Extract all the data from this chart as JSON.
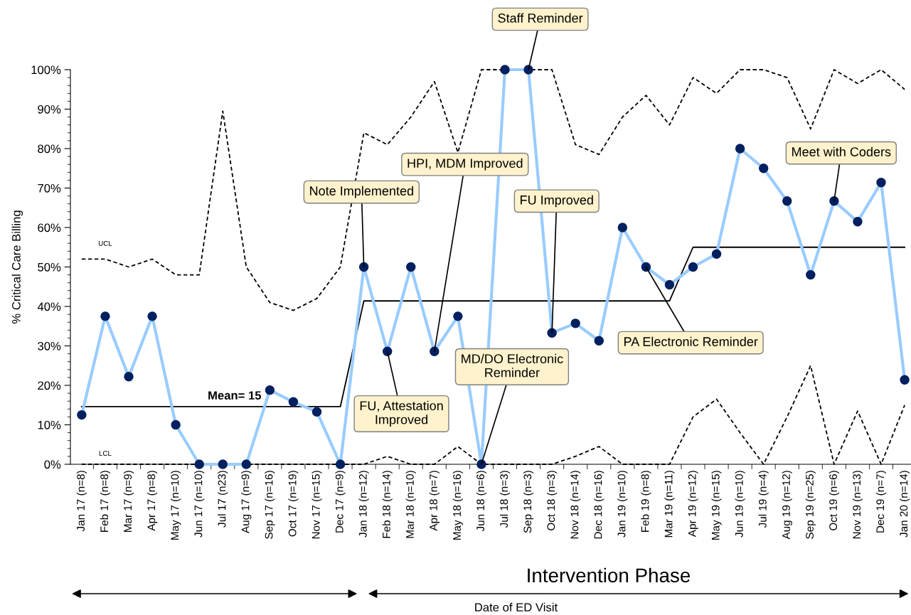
{
  "chart_data": {
    "type": "line",
    "ylabel": "% Critical Care Billing",
    "categories": [
      "Jan 17 (n=8)",
      "Feb 17 (n=8)",
      "Mar 17 (n=9)",
      "Apr 17 (n=8)",
      "May 17 (n=10)",
      "Jun 17 (n=10)",
      "Jul 17 (n23)",
      "Aug 17 (n=9)",
      "Sep 17 (n=16)",
      "Oct 17 (n=19)",
      "Nov 17 (n=15)",
      "Dec 17 (n=9)",
      "Jan 18 (n=12)",
      "Feb 18 (n=14)",
      "Mar 18 (n=10)",
      "Apr 18 (n=7)",
      "May 18 (n=16)",
      "Jun 18 (n=6)",
      "Jul 18 (n=3)",
      "Sep 18 (n=3)",
      "Oct 18 (n=3)",
      "Nov 18 (n=14)",
      "Dec 18 (n=16)",
      "Jan 19 (n=10)",
      "Feb 19 (n=8)",
      "Mar 19 (n=11)",
      "Apr 19 (n=12)",
      "May 19 (n=15)",
      "Jun 19 (n=10)",
      "Jul 19 (n=4)",
      "Aug 19 (n=12)",
      "Sep 19 (n=25)",
      "Oct 19 (n=6)",
      "Nov 19 (n=13)",
      "Dec 19 (n=7)",
      "Jan 20 (n=14)"
    ],
    "series": [
      {
        "name": "UCL",
        "color": "#000000",
        "line_style": "dashed",
        "marker": "none",
        "values": [
          52,
          52,
          50,
          52,
          48,
          48,
          89.5,
          50,
          41,
          39,
          42,
          50,
          84,
          81,
          88,
          97,
          79,
          100,
          100,
          100,
          100,
          81,
          78.5,
          88,
          93.5,
          86,
          98,
          94,
          100,
          100,
          98,
          85,
          100,
          96.5,
          100,
          95
        ]
      },
      {
        "name": "LCL",
        "color": "#000000",
        "line_style": "dashed",
        "marker": "none",
        "values": [
          0,
          0,
          0,
          0,
          0,
          0,
          0,
          0,
          0,
          0,
          0,
          0,
          0,
          2,
          0,
          0,
          4.5,
          0,
          0,
          0,
          0,
          2,
          4.5,
          0,
          0,
          0,
          12,
          16.5,
          8,
          0,
          12,
          25,
          0,
          13.5,
          0,
          15
        ]
      },
      {
        "name": "Mean= 15",
        "color": "#000000",
        "line_style": "solid",
        "marker": "none",
        "values": [
          14.6,
          14.6,
          14.6,
          14.6,
          14.6,
          14.6,
          14.6,
          14.6,
          14.6,
          14.6,
          14.6,
          14.6,
          41.4,
          41.4,
          41.4,
          41.4,
          41.4,
          41.4,
          41.4,
          41.4,
          41.4,
          41.4,
          41.4,
          41.4,
          41.4,
          41.4,
          55,
          55,
          55,
          55,
          55,
          55,
          55,
          55,
          55,
          55
        ]
      },
      {
        "color": "#99ccff",
        "line_style": "solid",
        "marker": "circle",
        "colors": [
          "#002060",
          "#002060",
          "#002060",
          "#002060",
          "#002060",
          "#002060",
          "#002060",
          "#002060",
          "#002060",
          "#002060",
          "#002060",
          "#002060",
          "#002060",
          "#002060",
          "#002060",
          "#002060",
          "#002060",
          "#002060",
          "#002060",
          "#002060",
          "#002060",
          "#002060",
          "#002060",
          "#002060",
          "#002060",
          "#002060",
          "#002060",
          "#002060",
          "#002060",
          "#002060",
          "#002060",
          "#002060",
          "#002060",
          "#002060",
          "#002060",
          "#002060"
        ],
        "values": [
          12.5,
          37.5,
          22.2,
          37.5,
          10,
          0,
          0,
          0,
          18.8,
          15.8,
          13.3,
          0,
          50,
          28.6,
          50,
          28.6,
          37.5,
          0,
          100,
          100,
          33.3,
          35.7,
          31.3,
          60,
          50,
          45.5,
          50,
          53.3,
          80,
          75,
          66.7,
          48,
          66.7,
          61.5,
          71.4,
          21.4
        ]
      }
    ],
    "ylim": [
      0,
      100
    ],
    "yticks": [
      {
        "value": 0,
        "label": "0%"
      },
      {
        "value": 10,
        "label": "10%"
      },
      {
        "value": 20,
        "label": "20%"
      },
      {
        "value": 30,
        "label": "30%"
      },
      {
        "value": 40,
        "label": "40%"
      },
      {
        "value": 50,
        "label": "50%"
      },
      {
        "value": 60,
        "label": "60%"
      },
      {
        "value": 70,
        "label": "70%"
      },
      {
        "value": 80,
        "label": "80%"
      },
      {
        "value": 90,
        "label": "90%"
      },
      {
        "value": 100,
        "label": "100%"
      }
    ],
    "grid": false,
    "legend": false,
    "annotations": [
      {
        "text": "Note Implemented",
        "x": "Jan 18 (n=12)",
        "y": 50
      },
      {
        "text": "FU, Attestation\nImproved",
        "x": "Feb 18 (n=14)",
        "y": 28.6
      },
      {
        "text": "HPI, MDM Improved",
        "x": "Apr 18 (n=7)",
        "y": 28.6
      },
      {
        "text": "MD/DO Electronic\nReminder",
        "x": "Jun 18 (n=6)",
        "y": 0
      },
      {
        "text": "Staff Reminder",
        "x": "Sep 18 (n=3)",
        "y": 100
      },
      {
        "text": "FU Improved",
        "x": "Oct 18 (n=3)",
        "y": 33.3
      },
      {
        "text": "PA Electronic Reminder",
        "x": "Feb 19 (n=8)",
        "y": 50
      },
      {
        "text": "Meet with Coders",
        "x": "Oct 19 (n=6)",
        "y": 66.7
      },
      "Intervention Phase",
      "Date of ED Visit"
    ]
  }
}
